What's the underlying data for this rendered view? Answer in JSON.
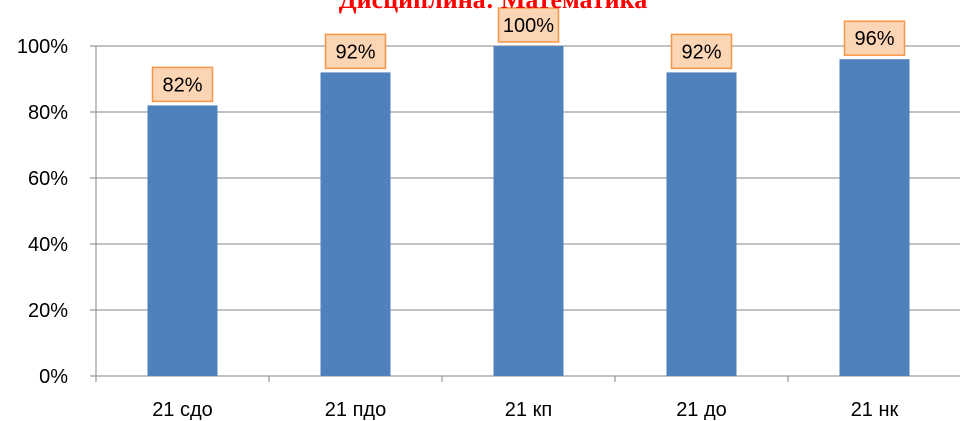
{
  "chart_data": {
    "type": "bar",
    "title": "Дисциплина: Математика",
    "categories": [
      "21 сдо",
      "21 пдо",
      "21 кп",
      "21 до",
      "21 нк"
    ],
    "values": [
      82,
      92,
      100,
      92,
      96
    ],
    "data_labels": [
      "82%",
      "92%",
      "100%",
      "92%",
      "96%"
    ],
    "yticks": [
      "0%",
      "20%",
      "40%",
      "60%",
      "80%",
      "100%"
    ],
    "ylim": [
      0,
      100
    ],
    "grid": true,
    "legend": "none",
    "colors": {
      "bar": "#4f81bd",
      "label_bg": "#fcd5b4",
      "label_border": "#f79646",
      "title": "#ff0000",
      "grid": "#868686"
    }
  }
}
